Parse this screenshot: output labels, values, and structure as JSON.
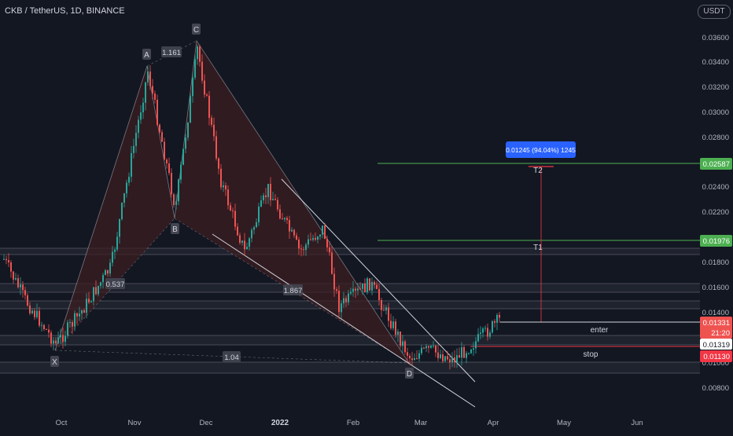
{
  "header": {
    "symbol_title": "CKB / TetherUS, 1D, BINANCE",
    "currency_button": "USDT"
  },
  "colors": {
    "background": "#131722",
    "up": "#26a69a",
    "down": "#ef5350",
    "pattern_fill": "#3b1d22",
    "pattern_line": "#b2b5be",
    "target_green": "#4caf50",
    "stop_red": "#f23645",
    "info_blue": "#2962ff"
  },
  "chart_data": {
    "type": "candlestick",
    "title": "CKB / TetherUS, 1D, BINANCE",
    "x_tick_labels": [
      "Oct",
      "Nov",
      "Dec",
      "2022",
      "Feb",
      "Mar",
      "Apr",
      "May",
      "Jun"
    ],
    "y_tick_labels": [
      "0.03600",
      "0.03400",
      "0.03200",
      "0.03000",
      "0.02800",
      "0.02400",
      "0.02200",
      "0.01800",
      "0.01600",
      "0.01400",
      "0.01000",
      "0.00800"
    ],
    "ylim": [
      0.0068,
      0.0378
    ],
    "pattern_points": [
      {
        "label": "X",
        "value": 0.011
      },
      {
        "label": "A",
        "value": 0.0337
      },
      {
        "label": "B",
        "value": 0.0212
      },
      {
        "label": "C",
        "value": 0.0355
      },
      {
        "label": "D",
        "value": 0.0104
      }
    ],
    "ratios": [
      "1.161",
      "0.537",
      "1.867",
      "1.04"
    ],
    "levels": [
      {
        "label": "T2",
        "value": 0.02587,
        "price_tag": "0.02587"
      },
      {
        "label": "T1",
        "value": 0.01976,
        "price_tag": "0.01976"
      },
      {
        "label": "enter",
        "value": 0.01331,
        "price_tag": "0.01331"
      },
      {
        "label": "stop",
        "value": 0.0113,
        "price_tag": "0.01130"
      }
    ],
    "current_price_tag": "0.01331",
    "countdown": "21:20",
    "marker_price_tag": "0.01319",
    "measure_label": "0.01245 (94.04%) 1245"
  }
}
